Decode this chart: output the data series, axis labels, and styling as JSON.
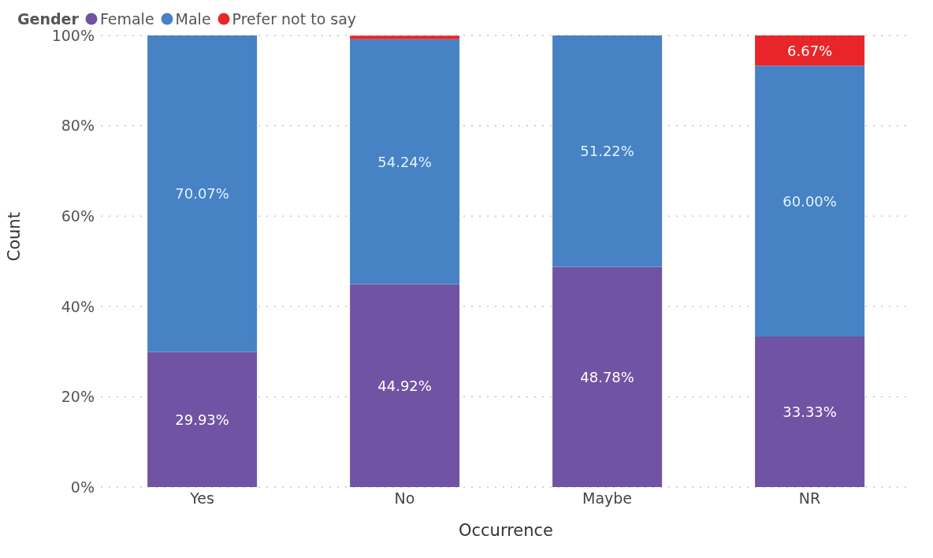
{
  "chart_data": {
    "type": "bar",
    "stacked": true,
    "xlabel": "Occurrence",
    "ylabel": "Count",
    "legend_title": "Gender",
    "legend": "top left",
    "grid": "y",
    "categories": [
      "Yes",
      "No",
      "Maybe",
      "NR"
    ],
    "ylim": [
      0,
      100
    ],
    "yticks": [
      {
        "value": 0,
        "label": "0%"
      },
      {
        "value": 20,
        "label": "20%"
      },
      {
        "value": 40,
        "label": "40%"
      },
      {
        "value": 60,
        "label": "60%"
      },
      {
        "value": 80,
        "label": "80%"
      },
      {
        "value": 100,
        "label": "100%"
      }
    ],
    "series": [
      {
        "name": "Female",
        "color": "#7153a3",
        "values": [
          29.93,
          44.92,
          48.78,
          33.33
        ],
        "value_labels": [
          "29.93%",
          "44.92%",
          "48.78%",
          "33.33%"
        ]
      },
      {
        "name": "Male",
        "color": "#4682c4",
        "values": [
          70.07,
          54.24,
          51.22,
          60.0
        ],
        "value_labels": [
          "70.07%",
          "54.24%",
          "51.22%",
          "60.00%"
        ]
      },
      {
        "name": "Prefer not to say",
        "color": "#e8262a",
        "values": [
          0,
          0.8,
          0,
          6.67
        ],
        "value_labels": [
          null,
          null,
          null,
          "6.67%"
        ]
      }
    ]
  }
}
